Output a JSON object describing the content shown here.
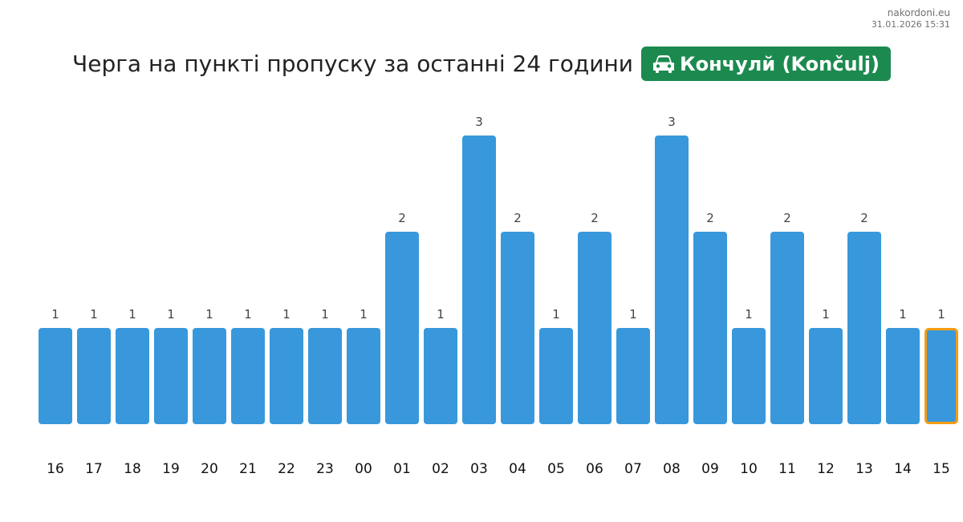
{
  "watermark": {
    "site": "nakordoni.eu",
    "timestamp": "31.01.2026 15:31"
  },
  "header": {
    "title": "Черга на пункті пропуску за останні 24 години",
    "badge_label": "Кончулй (Končulj)",
    "badge_icon": "car-icon",
    "badge_color": "#1c8a4f"
  },
  "colors": {
    "bar": "#3898db",
    "current_outline": "#f39c12"
  },
  "chart_data": {
    "type": "bar",
    "categories": [
      "16",
      "17",
      "18",
      "19",
      "20",
      "21",
      "22",
      "23",
      "00",
      "01",
      "02",
      "03",
      "04",
      "05",
      "06",
      "07",
      "08",
      "09",
      "10",
      "11",
      "12",
      "13",
      "14",
      "15"
    ],
    "values": [
      1,
      1,
      1,
      1,
      1,
      1,
      1,
      1,
      1,
      2,
      1,
      3,
      2,
      1,
      2,
      1,
      3,
      2,
      1,
      2,
      1,
      2,
      1,
      1
    ],
    "highlighted_category": "15",
    "title": "",
    "xlabel": "",
    "ylabel": "",
    "ylim": [
      0,
      3
    ],
    "data_labels": true,
    "grid": false
  }
}
